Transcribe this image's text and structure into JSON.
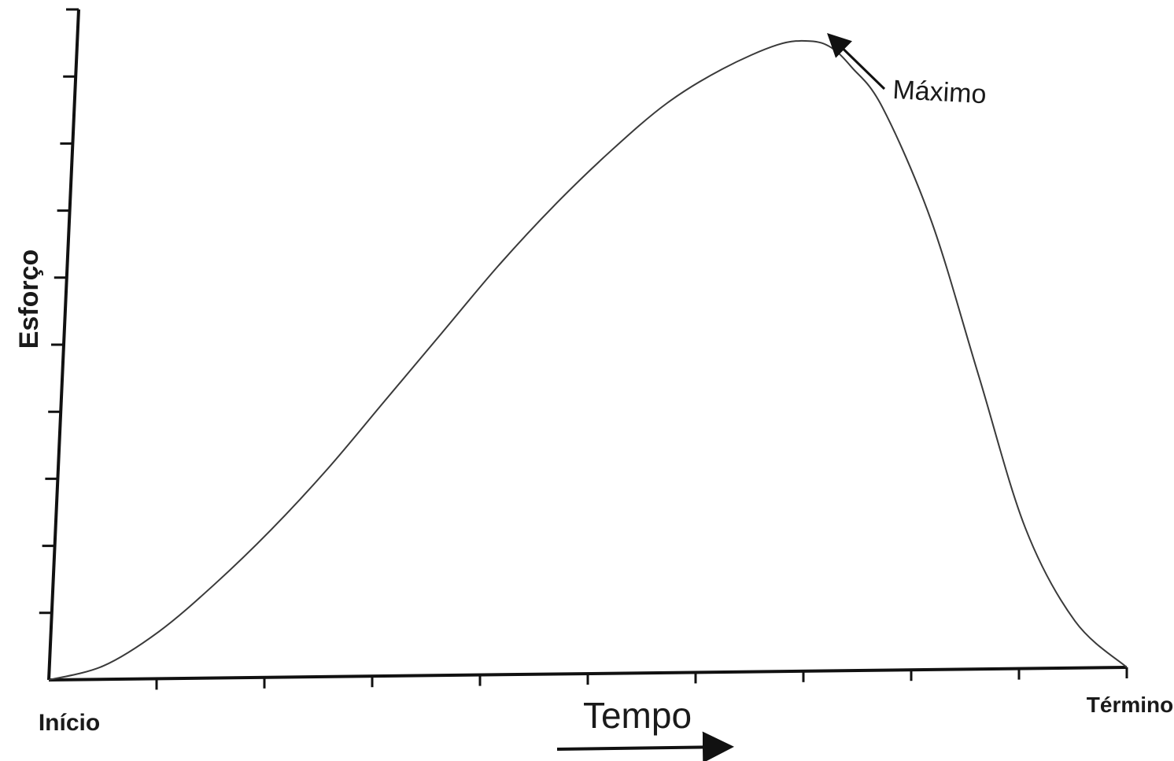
{
  "chart_data": {
    "type": "line",
    "title": "",
    "xlabel": "Tempo",
    "ylabel": "Esforço",
    "x_start_label": "Início",
    "x_end_label": "Término",
    "annotation": "Máximo",
    "xlim": [
      0,
      1
    ],
    "ylim": [
      0,
      1
    ],
    "grid": false,
    "x_tick_count": 10,
    "y_tick_count": 10,
    "series": [
      {
        "x": [
          0,
          0.05,
          0.1,
          0.15,
          0.2,
          0.25,
          0.3,
          0.35,
          0.4,
          0.45,
          0.5,
          0.55,
          0.6,
          0.65,
          0.68,
          0.7,
          0.72,
          0.75,
          0.8,
          0.85,
          0.9,
          0.95,
          1.0
        ],
        "y": [
          0,
          0.02,
          0.07,
          0.14,
          0.22,
          0.31,
          0.41,
          0.51,
          0.61,
          0.7,
          0.78,
          0.85,
          0.9,
          0.935,
          0.94,
          0.93,
          0.9,
          0.84,
          0.67,
          0.44,
          0.21,
          0.07,
          0.0
        ]
      }
    ],
    "colors": {
      "line": "#3a3a3a",
      "axis": "#111111"
    }
  }
}
